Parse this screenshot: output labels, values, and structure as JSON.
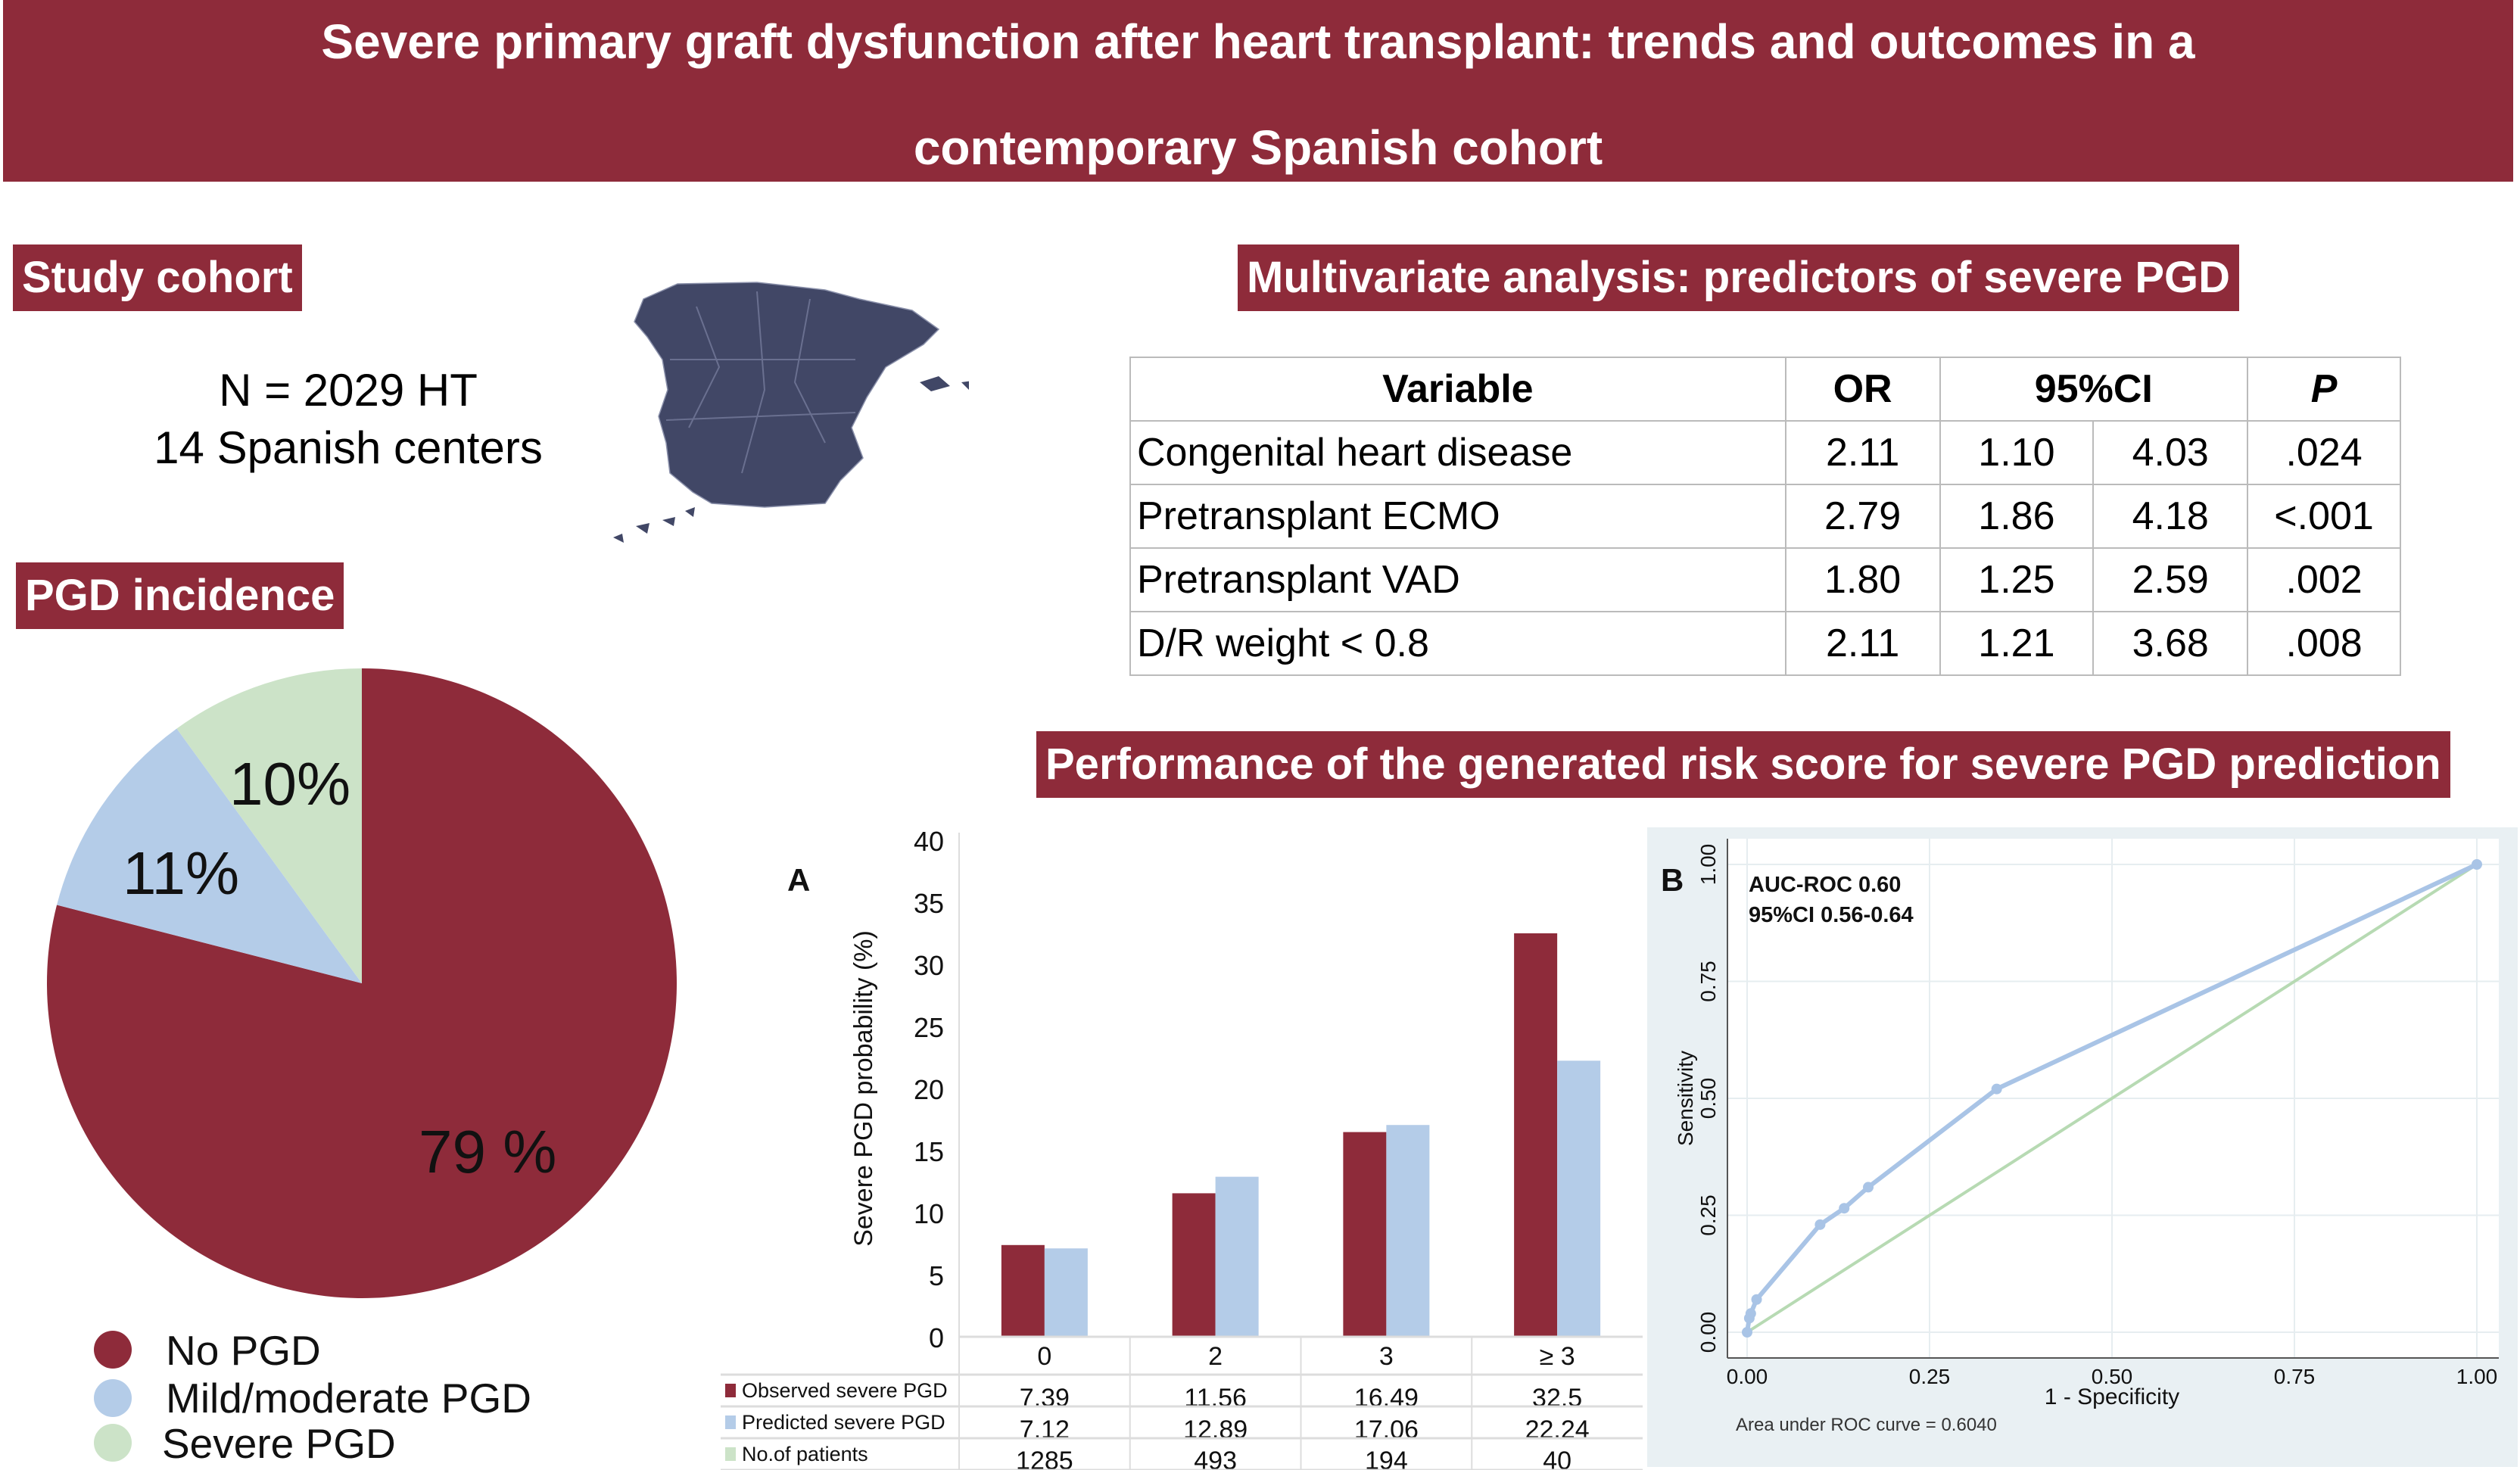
{
  "header": {
    "title_line1": "Severe primary graft dysfunction after heart transplant: trends and outcomes in a",
    "title_line2": "contemporary Spanish cohort"
  },
  "study": {
    "label": "Study cohort",
    "n": "N = 2029 HT",
    "centers": "14 Spanish centers"
  },
  "pgd": {
    "label": "PGD incidence",
    "legend": [
      "No PGD",
      "Mild/moderate PGD",
      "Severe PGD"
    ]
  },
  "multivariate": {
    "label": "Multivariate analysis: predictors of severe PGD",
    "headers": {
      "variable": "Variable",
      "or": "OR",
      "ci": "95%CI",
      "p": "P"
    },
    "rows": [
      {
        "variable": "Congenital heart disease",
        "or": "2.11",
        "lo": "1.10",
        "hi": "4.03",
        "p": ".024"
      },
      {
        "variable": "Pretransplant ECMO",
        "or": "2.79",
        "lo": "1.86",
        "hi": "4.18",
        "p": "<.001"
      },
      {
        "variable": "Pretransplant VAD",
        "or": "1.80",
        "lo": "1.25",
        "hi": "2.59",
        "p": ".002"
      },
      {
        "variable": "D/R weight < 0.8",
        "or": "2.11",
        "lo": "1.21",
        "hi": "3.68",
        "p": ".008"
      }
    ]
  },
  "performance": {
    "label": "Performance of the generated risk score for severe PGD prediction"
  },
  "colors": {
    "brand": "#8e2b3a",
    "observed": "#8e2b3a",
    "predicted": "#b4cce8",
    "patients": "#cce3c8",
    "map": "#414766"
  },
  "chart_data": [
    {
      "type": "pie",
      "title": "PGD incidence",
      "slices": [
        {
          "name": "No PGD",
          "value": 79,
          "label": "79 %",
          "color": "#8e2b3a"
        },
        {
          "name": "Mild/moderate PGD",
          "value": 11,
          "label": "11%",
          "color": "#b4cce8"
        },
        {
          "name": "Severe PGD",
          "value": 10,
          "label": "10%",
          "color": "#cce3c8"
        }
      ]
    },
    {
      "type": "bar",
      "panel": "A",
      "categories": [
        "0",
        "2",
        "3",
        "≥ 3"
      ],
      "ylabel": "Severe PGD probability (%)",
      "ylim": [
        0,
        40
      ],
      "yticks": [
        0,
        5,
        10,
        15,
        20,
        25,
        30,
        35,
        40
      ],
      "series": [
        {
          "name": "Observed severe PGD",
          "values": [
            7.39,
            11.56,
            16.49,
            32.5
          ],
          "labels": [
            "7.39",
            "11.56",
            "16.49",
            "32.5"
          ]
        },
        {
          "name": "Predicted severe PGD",
          "values": [
            7.12,
            12.89,
            17.06,
            22.24
          ],
          "labels": [
            "7.12",
            "12.89",
            "17.06",
            "22.24"
          ]
        }
      ],
      "table_extra": {
        "name": "No.of patients",
        "values": [
          "1285",
          "493",
          "194",
          "40"
        ]
      }
    },
    {
      "type": "line",
      "panel": "B",
      "xlabel": "1 - Specificity",
      "ylabel": "Sensitivity",
      "xlim": [
        0,
        1
      ],
      "ylim": [
        0,
        1
      ],
      "ticks": [
        "0.00",
        "0.25",
        "0.50",
        "0.75",
        "1.00"
      ],
      "annotation1": "AUC-ROC 0.60",
      "annotation2": "95%CI 0.56-0.64",
      "note": "Area under ROC curve = 0.6040",
      "roc": [
        [
          0,
          0
        ],
        [
          0.003,
          0.03
        ],
        [
          0.005,
          0.04
        ],
        [
          0.013,
          0.07
        ],
        [
          0.1,
          0.23
        ],
        [
          0.133,
          0.265
        ],
        [
          0.166,
          0.31
        ],
        [
          0.342,
          0.52
        ],
        [
          1,
          1
        ]
      ],
      "reference": [
        [
          0,
          0
        ],
        [
          1,
          1
        ]
      ]
    }
  ]
}
